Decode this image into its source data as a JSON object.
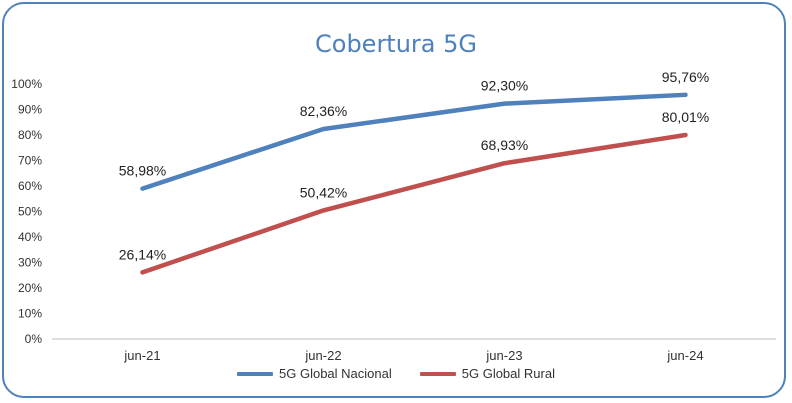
{
  "chart_data": {
    "type": "line",
    "title": "Cobertura 5G",
    "categories": [
      "jun-21",
      "jun-22",
      "jun-23",
      "jun-24"
    ],
    "y_ticks": [
      "0%",
      "10%",
      "20%",
      "30%",
      "40%",
      "50%",
      "60%",
      "70%",
      "80%",
      "90%",
      "100%"
    ],
    "ylim": [
      0,
      100
    ],
    "grid": false,
    "legend": "bottom",
    "series": [
      {
        "name": "5G Global Nacional",
        "color": "#4f81bd",
        "values": [
          58.98,
          82.36,
          92.3,
          95.76
        ],
        "labels": [
          "58,98%",
          "82,36%",
          "92,30%",
          "95,76%"
        ]
      },
      {
        "name": "5G Global Rural",
        "color": "#c0504d",
        "values": [
          26.14,
          50.42,
          68.93,
          80.01
        ],
        "labels": [
          "26,14%",
          "50,42%",
          "68,93%",
          "80,01%"
        ]
      }
    ]
  }
}
